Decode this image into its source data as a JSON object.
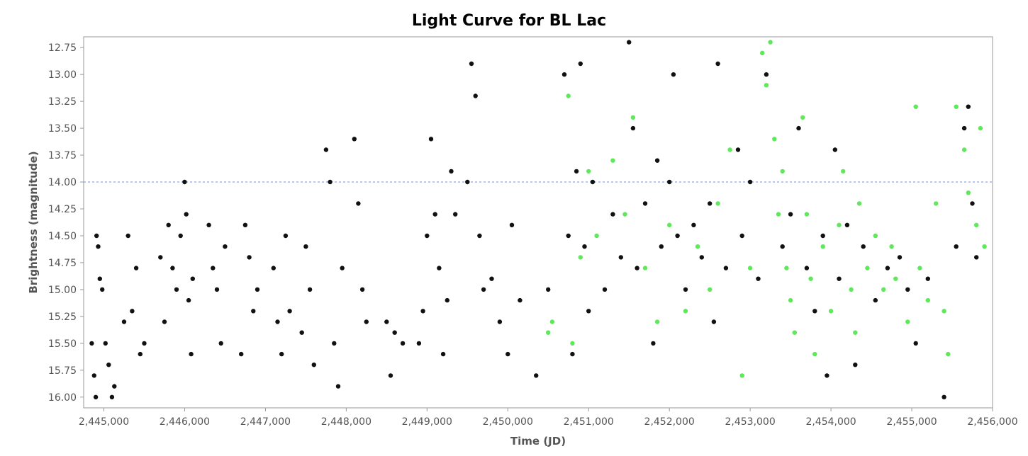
{
  "chart_data": {
    "type": "scatter",
    "title": "Light Curve for BL Lac",
    "xlabel": "Time (JD)",
    "ylabel": "Brightness (magnitude)",
    "xlim": [
      2444750,
      2456000
    ],
    "ylim": [
      16.1,
      12.65
    ],
    "y_inverted": true,
    "x_ticks": [
      2445000,
      2446000,
      2447000,
      2448000,
      2449000,
      2450000,
      2451000,
      2452000,
      2453000,
      2454000,
      2455000,
      2456000
    ],
    "x_tick_labels": [
      "2,445,000",
      "2,446,000",
      "2,447,000",
      "2,448,000",
      "2,449,000",
      "2,450,000",
      "2,451,000",
      "2,452,000",
      "2,453,000",
      "2,454,000",
      "2,455,000",
      "2,456,000"
    ],
    "y_ticks": [
      12.75,
      13.0,
      13.25,
      13.5,
      13.75,
      14.0,
      14.25,
      14.5,
      14.75,
      15.0,
      15.25,
      15.5,
      15.75,
      16.0
    ],
    "y_tick_labels": [
      "12.75",
      "13.00",
      "13.25",
      "13.50",
      "13.75",
      "14.00",
      "14.25",
      "14.50",
      "14.75",
      "15.00",
      "15.25",
      "15.50",
      "15.75",
      "16.00"
    ],
    "reference_line": {
      "y": 14.0,
      "color": "#7f8ed8"
    },
    "grid": false,
    "colors": {
      "black_series": "#111111",
      "green_series": "#5ee85a",
      "frame": "#999999"
    },
    "series": [
      {
        "color": "#111111",
        "points": [
          [
            2444850,
            15.5
          ],
          [
            2444880,
            15.8
          ],
          [
            2444900,
            16.0
          ],
          [
            2444910,
            14.5
          ],
          [
            2444930,
            14.6
          ],
          [
            2444950,
            14.9
          ],
          [
            2444980,
            15.0
          ],
          [
            2445020,
            15.5
          ],
          [
            2445060,
            15.7
          ],
          [
            2445100,
            16.0
          ],
          [
            2445130,
            15.9
          ],
          [
            2445250,
            15.3
          ],
          [
            2445300,
            14.5
          ],
          [
            2445350,
            15.2
          ],
          [
            2445400,
            14.8
          ],
          [
            2445450,
            15.6
          ],
          [
            2445500,
            15.5
          ],
          [
            2445700,
            14.7
          ],
          [
            2445750,
            15.3
          ],
          [
            2445800,
            14.4
          ],
          [
            2445850,
            14.8
          ],
          [
            2445900,
            15.0
          ],
          [
            2445950,
            14.5
          ],
          [
            2446000,
            14.0
          ],
          [
            2446020,
            14.3
          ],
          [
            2446050,
            15.1
          ],
          [
            2446080,
            15.6
          ],
          [
            2446100,
            14.9
          ],
          [
            2446300,
            14.4
          ],
          [
            2446350,
            14.8
          ],
          [
            2446400,
            15.0
          ],
          [
            2446450,
            15.5
          ],
          [
            2446500,
            14.6
          ],
          [
            2446700,
            15.6
          ],
          [
            2446750,
            14.4
          ],
          [
            2446800,
            14.7
          ],
          [
            2446850,
            15.2
          ],
          [
            2446900,
            15.0
          ],
          [
            2447100,
            14.8
          ],
          [
            2447150,
            15.3
          ],
          [
            2447200,
            15.6
          ],
          [
            2447250,
            14.5
          ],
          [
            2447300,
            15.2
          ],
          [
            2447450,
            15.4
          ],
          [
            2447500,
            14.6
          ],
          [
            2447550,
            15.0
          ],
          [
            2447600,
            15.7
          ],
          [
            2447750,
            13.7
          ],
          [
            2447800,
            14.0
          ],
          [
            2447850,
            15.5
          ],
          [
            2447900,
            15.9
          ],
          [
            2447950,
            14.8
          ],
          [
            2448100,
            13.6
          ],
          [
            2448150,
            14.2
          ],
          [
            2448200,
            15.0
          ],
          [
            2448250,
            15.3
          ],
          [
            2448500,
            15.3
          ],
          [
            2448550,
            15.8
          ],
          [
            2448600,
            15.4
          ],
          [
            2448700,
            15.5
          ],
          [
            2448900,
            15.5
          ],
          [
            2448950,
            15.2
          ],
          [
            2449000,
            14.5
          ],
          [
            2449050,
            13.6
          ],
          [
            2449100,
            14.3
          ],
          [
            2449150,
            14.8
          ],
          [
            2449200,
            15.6
          ],
          [
            2449250,
            15.1
          ],
          [
            2449300,
            13.9
          ],
          [
            2449350,
            14.3
          ],
          [
            2449500,
            14.0
          ],
          [
            2449550,
            12.9
          ],
          [
            2449600,
            13.2
          ],
          [
            2449650,
            14.5
          ],
          [
            2449700,
            15.0
          ],
          [
            2449800,
            14.9
          ],
          [
            2449900,
            15.3
          ],
          [
            2450000,
            15.6
          ],
          [
            2450050,
            14.4
          ],
          [
            2450150,
            15.1
          ],
          [
            2450350,
            15.8
          ],
          [
            2450500,
            15.0
          ],
          [
            2450700,
            13.0
          ],
          [
            2450750,
            14.5
          ],
          [
            2450800,
            15.6
          ],
          [
            2450850,
            13.9
          ],
          [
            2450900,
            12.9
          ],
          [
            2450950,
            14.6
          ],
          [
            2451000,
            15.2
          ],
          [
            2451050,
            14.0
          ],
          [
            2451200,
            15.0
          ],
          [
            2451300,
            14.3
          ],
          [
            2451400,
            14.7
          ],
          [
            2451500,
            12.7
          ],
          [
            2451550,
            13.5
          ],
          [
            2451600,
            14.8
          ],
          [
            2451700,
            14.2
          ],
          [
            2451800,
            15.5
          ],
          [
            2451850,
            13.8
          ],
          [
            2451900,
            14.6
          ],
          [
            2452000,
            14.0
          ],
          [
            2452050,
            13.0
          ],
          [
            2452100,
            14.5
          ],
          [
            2452200,
            15.0
          ],
          [
            2452300,
            14.4
          ],
          [
            2452400,
            14.7
          ],
          [
            2452500,
            14.2
          ],
          [
            2452550,
            15.3
          ],
          [
            2452600,
            12.9
          ],
          [
            2452700,
            14.8
          ],
          [
            2452850,
            13.7
          ],
          [
            2452900,
            14.5
          ],
          [
            2453000,
            14.0
          ],
          [
            2453100,
            14.9
          ],
          [
            2453200,
            13.0
          ],
          [
            2453400,
            14.6
          ],
          [
            2453500,
            14.3
          ],
          [
            2453600,
            13.5
          ],
          [
            2453700,
            14.8
          ],
          [
            2453800,
            15.2
          ],
          [
            2453900,
            14.5
          ],
          [
            2453950,
            15.8
          ],
          [
            2454050,
            13.7
          ],
          [
            2454100,
            14.9
          ],
          [
            2454200,
            14.4
          ],
          [
            2454300,
            15.7
          ],
          [
            2454400,
            14.6
          ],
          [
            2454550,
            15.1
          ],
          [
            2454700,
            14.8
          ],
          [
            2454850,
            14.7
          ],
          [
            2454950,
            15.0
          ],
          [
            2455050,
            15.5
          ],
          [
            2455200,
            14.9
          ],
          [
            2455400,
            16.0
          ],
          [
            2455550,
            14.6
          ],
          [
            2455650,
            13.5
          ],
          [
            2455700,
            13.3
          ],
          [
            2455750,
            14.2
          ],
          [
            2455800,
            14.7
          ]
        ]
      },
      {
        "color": "#5ee85a",
        "points": [
          [
            2450500,
            15.4
          ],
          [
            2450550,
            15.3
          ],
          [
            2450750,
            13.2
          ],
          [
            2450800,
            15.5
          ],
          [
            2450900,
            14.7
          ],
          [
            2451000,
            13.9
          ],
          [
            2451100,
            14.5
          ],
          [
            2451300,
            13.8
          ],
          [
            2451450,
            14.3
          ],
          [
            2451550,
            13.4
          ],
          [
            2451700,
            14.8
          ],
          [
            2451850,
            15.3
          ],
          [
            2452000,
            14.4
          ],
          [
            2452200,
            15.2
          ],
          [
            2452350,
            14.6
          ],
          [
            2452500,
            15.0
          ],
          [
            2452600,
            14.2
          ],
          [
            2452750,
            13.7
          ],
          [
            2452900,
            15.8
          ],
          [
            2453000,
            14.8
          ],
          [
            2453150,
            12.8
          ],
          [
            2453200,
            13.1
          ],
          [
            2453250,
            12.7
          ],
          [
            2453300,
            13.6
          ],
          [
            2453350,
            14.3
          ],
          [
            2453400,
            13.9
          ],
          [
            2453450,
            14.8
          ],
          [
            2453500,
            15.1
          ],
          [
            2453550,
            15.4
          ],
          [
            2453650,
            13.4
          ],
          [
            2453700,
            14.3
          ],
          [
            2453750,
            14.9
          ],
          [
            2453800,
            15.6
          ],
          [
            2453900,
            14.6
          ],
          [
            2454000,
            15.2
          ],
          [
            2454100,
            14.4
          ],
          [
            2454150,
            13.9
          ],
          [
            2454250,
            15.0
          ],
          [
            2454300,
            15.4
          ],
          [
            2454350,
            14.2
          ],
          [
            2454450,
            14.8
          ],
          [
            2454550,
            14.5
          ],
          [
            2454650,
            15.0
          ],
          [
            2454750,
            14.6
          ],
          [
            2454800,
            14.9
          ],
          [
            2454950,
            15.3
          ],
          [
            2455050,
            13.3
          ],
          [
            2455100,
            14.8
          ],
          [
            2455200,
            15.1
          ],
          [
            2455300,
            14.2
          ],
          [
            2455400,
            15.2
          ],
          [
            2455450,
            15.6
          ],
          [
            2455550,
            13.3
          ],
          [
            2455650,
            13.7
          ],
          [
            2455700,
            14.1
          ],
          [
            2455800,
            14.4
          ],
          [
            2455850,
            13.5
          ],
          [
            2455900,
            14.6
          ]
        ]
      }
    ]
  }
}
